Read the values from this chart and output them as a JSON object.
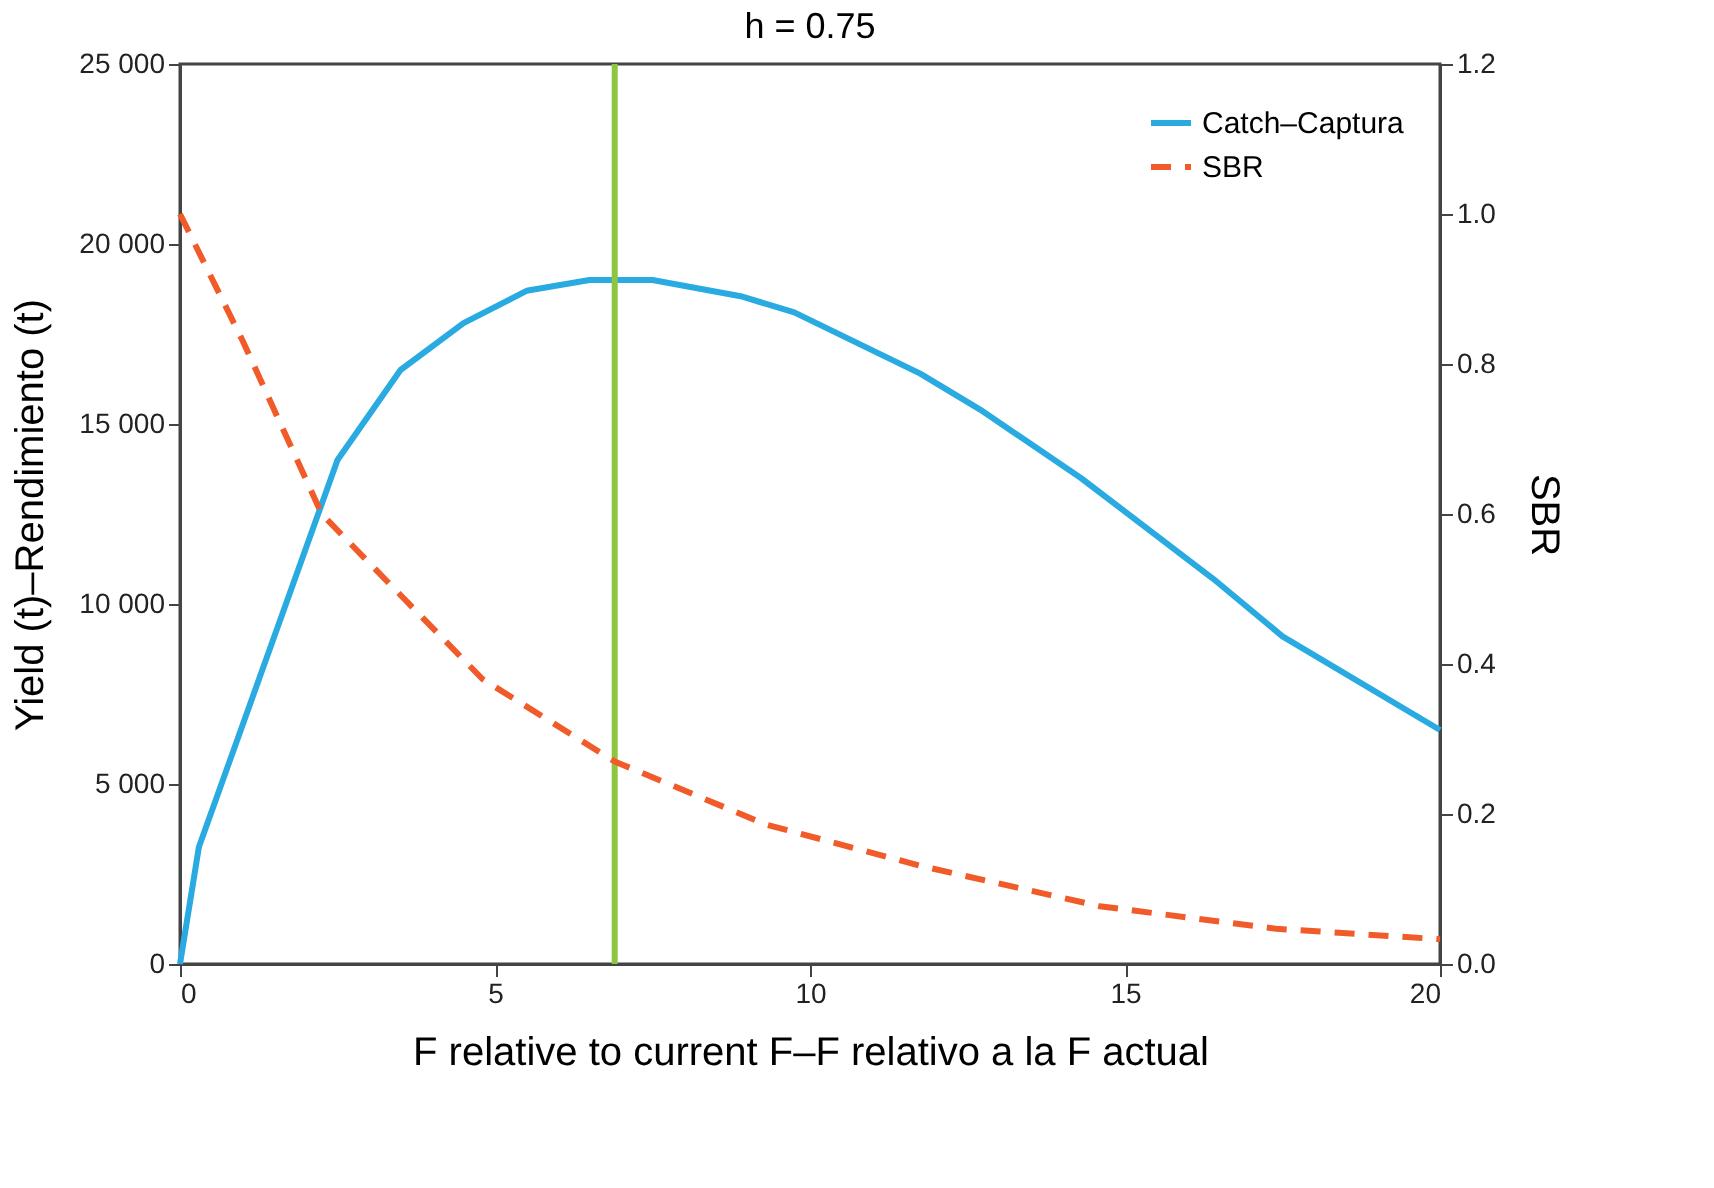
{
  "chart_data": {
    "type": "line",
    "title": "h = 0.75",
    "xlabel": "F relative to current F–F relativo a la F actual",
    "ylabel": "Yield (t)–Rendimiento (t)",
    "y2label": "SBR",
    "series": [
      {
        "name": "Catch–Captura",
        "color": "#29abe2",
        "line_style": "solid",
        "x": [
          0,
          0.3,
          2.5,
          3.5,
          4.5,
          5.5,
          6.5,
          7.5,
          8.9,
          9.75,
          11.75,
          12.7,
          14.3,
          16.4,
          17.5,
          20
        ],
        "values": [
          0,
          3250,
          14000,
          16500,
          17800,
          18700,
          19000,
          19000,
          18550,
          18100,
          16400,
          15400,
          13500,
          10700,
          9100,
          6500
        ]
      },
      {
        "name": "SBR",
        "color": "#f15a29",
        "line_style": "dashed",
        "axis": "y2",
        "x": [
          0,
          1,
          2.25,
          3,
          4.8,
          6.9,
          9.3,
          11.75,
          14.6,
          17.4,
          20
        ],
        "values": [
          1.0,
          0.83,
          0.6,
          0.535,
          0.38,
          0.27,
          0.186,
          0.131,
          0.077,
          0.047,
          0.033
        ]
      }
    ],
    "ref_lines": [
      {
        "axis": "x",
        "value": 6.9,
        "color": "#8dc63f",
        "line_style": "solid"
      }
    ],
    "xlim": [
      0,
      20
    ],
    "xticks": [
      0,
      5,
      10,
      15,
      20
    ],
    "ylim": [
      0,
      25000
    ],
    "yticks": [
      {
        "value": 0,
        "label": "0"
      },
      {
        "value": 5000,
        "label": "5 000"
      },
      {
        "value": 10000,
        "label": "10 000"
      },
      {
        "value": 15000,
        "label": "15 000"
      },
      {
        "value": 20000,
        "label": "20 000"
      },
      {
        "value": 25000,
        "label": "25 000"
      }
    ],
    "y2lim": [
      0,
      1.2
    ],
    "y2ticks": [
      {
        "value": 0,
        "label": "0.0"
      },
      {
        "value": 0.2,
        "label": "0.2"
      },
      {
        "value": 0.4,
        "label": "0.4"
      },
      {
        "value": 0.6,
        "label": "0.6"
      },
      {
        "value": 0.8,
        "label": "0.8"
      },
      {
        "value": 1.0,
        "label": "1.0"
      },
      {
        "value": 1.2,
        "label": "1.2"
      }
    ],
    "grid": false,
    "legend": "top right",
    "marker": "none"
  }
}
